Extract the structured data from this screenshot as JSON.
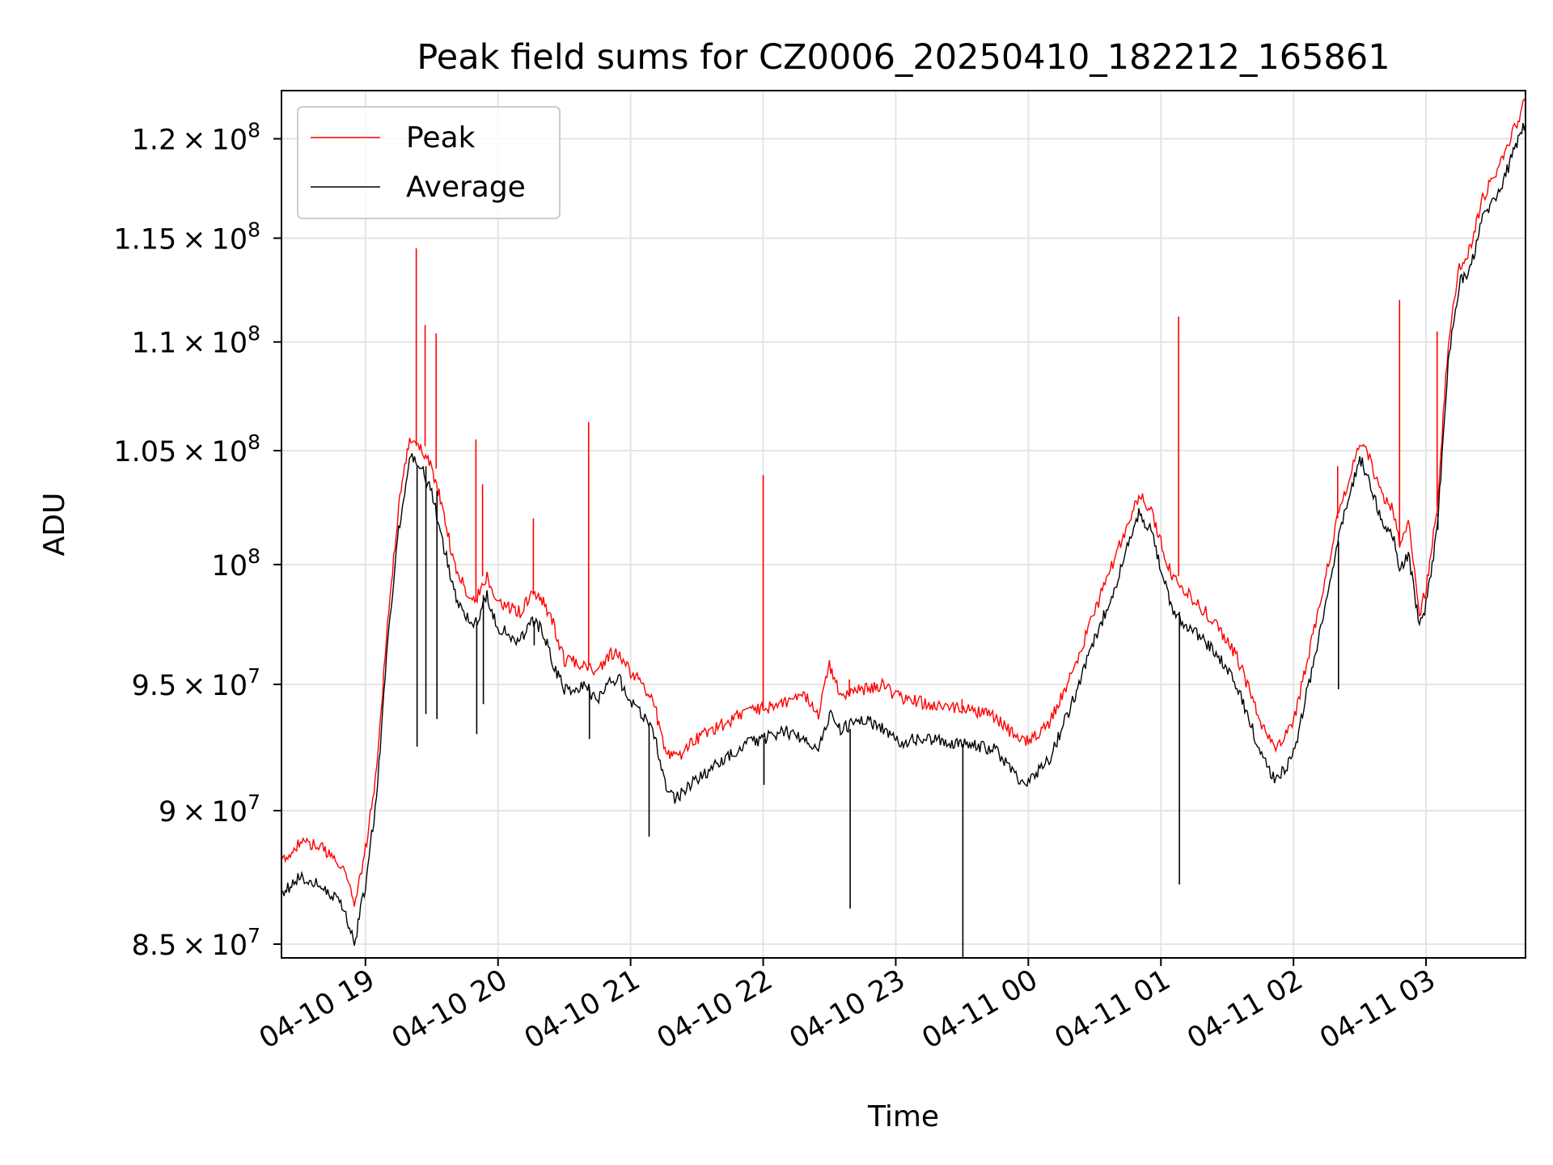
{
  "chart_data": {
    "type": "line",
    "title": "Peak field sums for CZ0006_20250410_182212_165861",
    "xlabel": "Time",
    "ylabel": "ADU",
    "y_scale": "log",
    "xlim": [
      "2025-04-10 18:22",
      "2025-04-11 03:45"
    ],
    "ylim": [
      84500000,
      122500000
    ],
    "grid": true,
    "legend_position": "top-left",
    "x_ticks": [
      {
        "t": "2025-04-10 19:00",
        "label": "04-10 19"
      },
      {
        "t": "2025-04-10 20:00",
        "label": "04-10 20"
      },
      {
        "t": "2025-04-10 21:00",
        "label": "04-10 21"
      },
      {
        "t": "2025-04-10 22:00",
        "label": "04-10 22"
      },
      {
        "t": "2025-04-10 23:00",
        "label": "04-10 23"
      },
      {
        "t": "2025-04-11 00:00",
        "label": "04-11 00"
      },
      {
        "t": "2025-04-11 01:00",
        "label": "04-11 01"
      },
      {
        "t": "2025-04-11 02:00",
        "label": "04-11 02"
      },
      {
        "t": "2025-04-11 03:00",
        "label": "04-11 03"
      }
    ],
    "y_ticks": [
      {
        "v": 85000000,
        "mant": "8.5",
        "exp": "7"
      },
      {
        "v": 90000000,
        "mant": "9",
        "exp": "7"
      },
      {
        "v": 95000000,
        "mant": "9.5",
        "exp": "7"
      },
      {
        "v": 100000000,
        "mant": "",
        "exp": "8"
      },
      {
        "v": 105000000,
        "mant": "1.05",
        "exp": "8"
      },
      {
        "v": 110000000,
        "mant": "1.1",
        "exp": "8"
      },
      {
        "v": 115000000,
        "mant": "1.15",
        "exp": "8"
      },
      {
        "v": 120000000,
        "mant": "1.2",
        "exp": "8"
      }
    ],
    "series": [
      {
        "name": "Peak",
        "color": "#ff0000",
        "points": [
          [
            "2025-04-10 18:22",
            88000000
          ],
          [
            "2025-04-10 18:30",
            88800000
          ],
          [
            "2025-04-10 18:40",
            88600000
          ],
          [
            "2025-04-10 18:50",
            87800000
          ],
          [
            "2025-04-10 18:55",
            86500000
          ],
          [
            "2025-04-10 19:00",
            88500000
          ],
          [
            "2025-04-10 19:05",
            91500000
          ],
          [
            "2025-04-10 19:10",
            97500000
          ],
          [
            "2025-04-10 19:15",
            102500000
          ],
          [
            "2025-04-10 19:20",
            105500000
          ],
          [
            "2025-04-10 19:25",
            105200000
          ],
          [
            "2025-04-10 19:30",
            104200000
          ],
          [
            "2025-04-10 19:35",
            102500000
          ],
          [
            "2025-04-10 19:40",
            100000000
          ],
          [
            "2025-04-10 19:45",
            99000000
          ],
          [
            "2025-04-10 19:50",
            98500000
          ],
          [
            "2025-04-10 19:55",
            99500000
          ],
          [
            "2025-04-10 20:00",
            98300000
          ],
          [
            "2025-04-10 20:10",
            98000000
          ],
          [
            "2025-04-10 20:15",
            98700000
          ],
          [
            "2025-04-10 20:20",
            98500000
          ],
          [
            "2025-04-10 20:25",
            97500000
          ],
          [
            "2025-04-10 20:30",
            96000000
          ],
          [
            "2025-04-10 20:40",
            95800000
          ],
          [
            "2025-04-10 20:45",
            95500000
          ],
          [
            "2025-04-10 20:50",
            96200000
          ],
          [
            "2025-04-10 20:55",
            96300000
          ],
          [
            "2025-04-10 21:00",
            95500000
          ],
          [
            "2025-04-10 21:10",
            94500000
          ],
          [
            "2025-04-10 21:15",
            92500000
          ],
          [
            "2025-04-10 21:20",
            92000000
          ],
          [
            "2025-04-10 21:30",
            92800000
          ],
          [
            "2025-04-10 21:40",
            93300000
          ],
          [
            "2025-04-10 21:50",
            93800000
          ],
          [
            "2025-04-10 22:00",
            94000000
          ],
          [
            "2025-04-10 22:10",
            94300000
          ],
          [
            "2025-04-10 22:20",
            94500000
          ],
          [
            "2025-04-10 22:25",
            93800000
          ],
          [
            "2025-04-10 22:30",
            95800000
          ],
          [
            "2025-04-10 22:35",
            94500000
          ],
          [
            "2025-04-10 22:45",
            94800000
          ],
          [
            "2025-04-10 22:55",
            95000000
          ],
          [
            "2025-04-10 23:00",
            94500000
          ],
          [
            "2025-04-10 23:15",
            94200000
          ],
          [
            "2025-04-10 23:30",
            94000000
          ],
          [
            "2025-04-10 23:45",
            93700000
          ],
          [
            "2025-04-10 23:55",
            92800000
          ],
          [
            "2025-04-11 00:00",
            92700000
          ],
          [
            "2025-04-11 00:10",
            93500000
          ],
          [
            "2025-04-11 00:20",
            95500000
          ],
          [
            "2025-04-11 00:30",
            98000000
          ],
          [
            "2025-04-11 00:40",
            100500000
          ],
          [
            "2025-04-11 00:50",
            103000000
          ],
          [
            "2025-04-11 00:55",
            102500000
          ],
          [
            "2025-04-11 01:00",
            101000000
          ],
          [
            "2025-04-11 01:05",
            99500000
          ],
          [
            "2025-04-11 01:15",
            98500000
          ],
          [
            "2025-04-11 01:25",
            97500000
          ],
          [
            "2025-04-11 01:35",
            96000000
          ],
          [
            "2025-04-11 01:45",
            93500000
          ],
          [
            "2025-04-11 01:52",
            92300000
          ],
          [
            "2025-04-11 02:00",
            93500000
          ],
          [
            "2025-04-11 02:10",
            97500000
          ],
          [
            "2025-04-11 02:20",
            102000000
          ],
          [
            "2025-04-11 02:30",
            105500000
          ],
          [
            "2025-04-11 02:35",
            104500000
          ],
          [
            "2025-04-11 02:40",
            103000000
          ],
          [
            "2025-04-11 02:45",
            102500000
          ],
          [
            "2025-04-11 02:48",
            100800000
          ],
          [
            "2025-04-11 02:52",
            101800000
          ],
          [
            "2025-04-11 02:57",
            97800000
          ],
          [
            "2025-04-11 03:00",
            99000000
          ],
          [
            "2025-04-11 03:05",
            102500000
          ],
          [
            "2025-04-11 03:10",
            110000000
          ],
          [
            "2025-04-11 03:15",
            113500000
          ],
          [
            "2025-04-11 03:20",
            114500000
          ],
          [
            "2025-04-11 03:25",
            116800000
          ],
          [
            "2025-04-11 03:30",
            118000000
          ],
          [
            "2025-04-11 03:35",
            119000000
          ],
          [
            "2025-04-11 03:40",
            120500000
          ],
          [
            "2025-04-11 03:45",
            122000000
          ]
        ]
      },
      {
        "name": "Average",
        "color": "#000000",
        "points": [
          [
            "2025-04-10 18:22",
            86800000
          ],
          [
            "2025-04-10 18:30",
            87500000
          ],
          [
            "2025-04-10 18:40",
            87200000
          ],
          [
            "2025-04-10 18:50",
            86400000
          ],
          [
            "2025-04-10 18:55",
            85000000
          ],
          [
            "2025-04-10 19:00",
            87200000
          ],
          [
            "2025-04-10 19:05",
            90500000
          ],
          [
            "2025-04-10 19:10",
            96500000
          ],
          [
            "2025-04-10 19:15",
            101500000
          ],
          [
            "2025-04-10 19:20",
            104700000
          ],
          [
            "2025-04-10 19:25",
            104300000
          ],
          [
            "2025-04-10 19:30",
            103200000
          ],
          [
            "2025-04-10 19:35",
            101000000
          ],
          [
            "2025-04-10 19:40",
            98800000
          ],
          [
            "2025-04-10 19:45",
            97800000
          ],
          [
            "2025-04-10 19:50",
            97500000
          ],
          [
            "2025-04-10 19:55",
            98700000
          ],
          [
            "2025-04-10 20:00",
            97300000
          ],
          [
            "2025-04-10 20:10",
            96800000
          ],
          [
            "2025-04-10 20:15",
            97600000
          ],
          [
            "2025-04-10 20:20",
            97300000
          ],
          [
            "2025-04-10 20:25",
            95800000
          ],
          [
            "2025-04-10 20:30",
            94800000
          ],
          [
            "2025-04-10 20:40",
            94900000
          ],
          [
            "2025-04-10 20:45",
            94300000
          ],
          [
            "2025-04-10 20:50",
            95100000
          ],
          [
            "2025-04-10 20:55",
            95200000
          ],
          [
            "2025-04-10 21:00",
            94300000
          ],
          [
            "2025-04-10 21:10",
            93300000
          ],
          [
            "2025-04-10 21:15",
            91200000
          ],
          [
            "2025-04-10 21:20",
            90400000
          ],
          [
            "2025-04-10 21:30",
            91200000
          ],
          [
            "2025-04-10 21:40",
            91900000
          ],
          [
            "2025-04-10 21:50",
            92500000
          ],
          [
            "2025-04-10 22:00",
            92800000
          ],
          [
            "2025-04-10 22:10",
            93100000
          ],
          [
            "2025-04-10 22:20",
            92800000
          ],
          [
            "2025-04-10 22:25",
            92300000
          ],
          [
            "2025-04-10 22:30",
            93800000
          ],
          [
            "2025-04-10 22:35",
            93200000
          ],
          [
            "2025-04-10 22:45",
            93600000
          ],
          [
            "2025-04-10 22:55",
            93200000
          ],
          [
            "2025-04-10 23:00",
            92700000
          ],
          [
            "2025-04-10 23:15",
            92800000
          ],
          [
            "2025-04-10 23:30",
            92600000
          ],
          [
            "2025-04-10 23:45",
            92400000
          ],
          [
            "2025-04-10 23:55",
            91300000
          ],
          [
            "2025-04-11 00:00",
            91100000
          ],
          [
            "2025-04-11 00:10",
            92100000
          ],
          [
            "2025-04-11 00:20",
            94300000
          ],
          [
            "2025-04-11 00:30",
            96800000
          ],
          [
            "2025-04-11 00:40",
            99300000
          ],
          [
            "2025-04-11 00:50",
            102200000
          ],
          [
            "2025-04-11 00:55",
            101600000
          ],
          [
            "2025-04-11 01:00",
            99900000
          ],
          [
            "2025-04-11 01:05",
            98000000
          ],
          [
            "2025-04-11 01:15",
            97200000
          ],
          [
            "2025-04-11 01:25",
            96300000
          ],
          [
            "2025-04-11 01:35",
            94800000
          ],
          [
            "2025-04-11 01:45",
            92300000
          ],
          [
            "2025-04-11 01:52",
            91100000
          ],
          [
            "2025-04-11 02:00",
            92200000
          ],
          [
            "2025-04-11 02:10",
            96300000
          ],
          [
            "2025-04-11 02:20",
            101000000
          ],
          [
            "2025-04-11 02:30",
            104700000
          ],
          [
            "2025-04-11 02:35",
            103500000
          ],
          [
            "2025-04-11 02:40",
            101800000
          ],
          [
            "2025-04-11 02:45",
            101300000
          ],
          [
            "2025-04-11 02:48",
            99700000
          ],
          [
            "2025-04-11 02:52",
            100500000
          ],
          [
            "2025-04-11 02:57",
            97300000
          ],
          [
            "2025-04-11 03:00",
            98300000
          ],
          [
            "2025-04-11 03:05",
            101500000
          ],
          [
            "2025-04-11 03:10",
            109000000
          ],
          [
            "2025-04-11 03:15",
            112800000
          ],
          [
            "2025-04-11 03:20",
            113500000
          ],
          [
            "2025-04-11 03:25",
            115800000
          ],
          [
            "2025-04-11 03:30",
            116800000
          ],
          [
            "2025-04-11 03:35",
            117800000
          ],
          [
            "2025-04-11 03:40",
            119500000
          ],
          [
            "2025-04-11 03:45",
            120800000
          ]
        ]
      }
    ],
    "spikes": [
      {
        "t": "2025-04-10 19:23",
        "peak": 114500000,
        "average": 92500000
      },
      {
        "t": "2025-04-10 19:27",
        "peak": 110800000,
        "average": 93800000
      },
      {
        "t": "2025-04-10 19:32",
        "peak": 110400000,
        "average": 93600000
      },
      {
        "t": "2025-04-10 19:50",
        "peak": 105500000,
        "average": 93000000
      },
      {
        "t": "2025-04-10 19:53",
        "peak": 103500000,
        "average": 94200000
      },
      {
        "t": "2025-04-10 20:16",
        "peak": 102000000,
        "average": 96600000
      },
      {
        "t": "2025-04-10 20:41",
        "peak": 106300000,
        "average": 92800000
      },
      {
        "t": "2025-04-10 21:08",
        "peak": 94600000,
        "average": 89000000
      },
      {
        "t": "2025-04-10 22:00",
        "peak": 103900000,
        "average": 91000000
      },
      {
        "t": "2025-04-10 22:39",
        "peak": 95200000,
        "average": 86300000
      },
      {
        "t": "2025-04-10 23:30",
        "peak": 94400000,
        "average": 84500000
      },
      {
        "t": "2025-04-11 01:08",
        "peak": 111200000,
        "average": 87200000
      },
      {
        "t": "2025-04-11 02:20",
        "peak": 104300000,
        "average": 94800000
      },
      {
        "t": "2025-04-11 02:48",
        "peak": 112000000,
        "average": 99700000
      },
      {
        "t": "2025-04-11 03:05",
        "peak": 110500000,
        "average": 102200000
      }
    ]
  }
}
